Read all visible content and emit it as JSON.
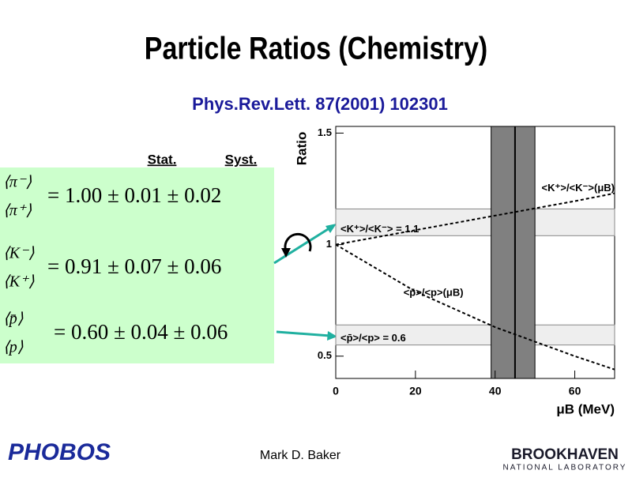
{
  "title": "Particle Ratios (Chemistry)",
  "subtitle": "Phys.Rev.Lett. 87(2001) 102301",
  "stat_label": "Stat.",
  "syst_label": "Syst.",
  "equations": [
    {
      "numerator": "⟨π⁻⟩",
      "denominator": "⟨π⁺⟩",
      "text": "= 1.00 ± 0.01 ± 0.02"
    },
    {
      "numerator": "⟨K⁻⟩",
      "denominator": "⟨K⁺⟩",
      "text": "= 0.91 ± 0.07 ± 0.06"
    },
    {
      "numerator": "⟨p̄⟩",
      "denominator": "⟨p⟩",
      "text": "= 0.60 ± 0.04 ± 0.06"
    }
  ],
  "author": "Mark D. Baker",
  "left_logo": "PHOBOS",
  "right_logo": "BROOKHAVEN",
  "right_logo_sub": "NATIONAL LABORATORY",
  "chart_data": {
    "type": "line",
    "ylabel": "Ratio",
    "xlabel": "μB (MeV)",
    "xlim": [
      0,
      70
    ],
    "ylim": [
      0.4,
      1.53
    ],
    "xticks": [
      0,
      20,
      40,
      60
    ],
    "yticks": [
      0.5,
      1,
      1.5
    ],
    "x": [
      0,
      20,
      40,
      60,
      70
    ],
    "series": [
      {
        "name": "<K⁺>/<K⁻>(μB)",
        "color": "#000000",
        "values": [
          1.0,
          1.065,
          1.13,
          1.195,
          1.23
        ]
      },
      {
        "name": "<p̄>/<p>(μB)",
        "color": "#000000",
        "values": [
          1.0,
          0.79,
          0.63,
          0.5,
          0.44
        ]
      }
    ],
    "bands": [
      {
        "label": "<K⁺>/<K⁻> = 1.1",
        "values": [
          1.04,
          1.16
        ]
      },
      {
        "label": "<p̄>/<p> = 0.6",
        "values": [
          0.55,
          0.64
        ]
      }
    ],
    "vband": [
      39,
      50
    ],
    "vline": 45
  }
}
